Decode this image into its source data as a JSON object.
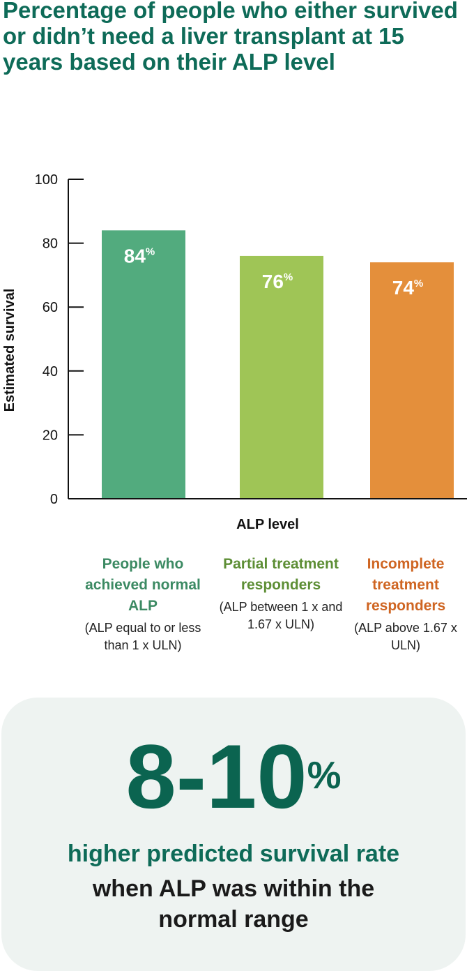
{
  "chart_data": {
    "type": "bar",
    "title": "Percentage of people who either survived or didn’t need a liver transplant at 15 years based on their ALP level",
    "xlabel": "ALP level",
    "ylabel": "Estimated survival",
    "ylim": [
      0,
      100
    ],
    "yticks": [
      0,
      20,
      40,
      60,
      80,
      100
    ],
    "grid": false,
    "categories": [
      {
        "name": "People who achieved normal ALP",
        "detail": "(ALP equal to or less than 1 x ULN)",
        "color": "#52ab7e",
        "label_color": "#3c8a63"
      },
      {
        "name": "Partial treatment responders",
        "detail": "(ALP between 1 x and 1.67 x ULN)",
        "color": "#9fc556",
        "label_color": "#5d8e35"
      },
      {
        "name": "Incomplete treatment responders",
        "detail": "(ALP above 1.67 x ULN)",
        "color": "#e48f3b",
        "label_color": "#cf6522"
      }
    ],
    "values": [
      84,
      76,
      74
    ],
    "data_labels": [
      "84",
      "76",
      "74"
    ],
    "data_label_suffix": "%"
  },
  "callout": {
    "value": "8-10",
    "suffix": "%",
    "line1": "higher predicted survival rate",
    "line2": "when ALP was within the normal range"
  }
}
